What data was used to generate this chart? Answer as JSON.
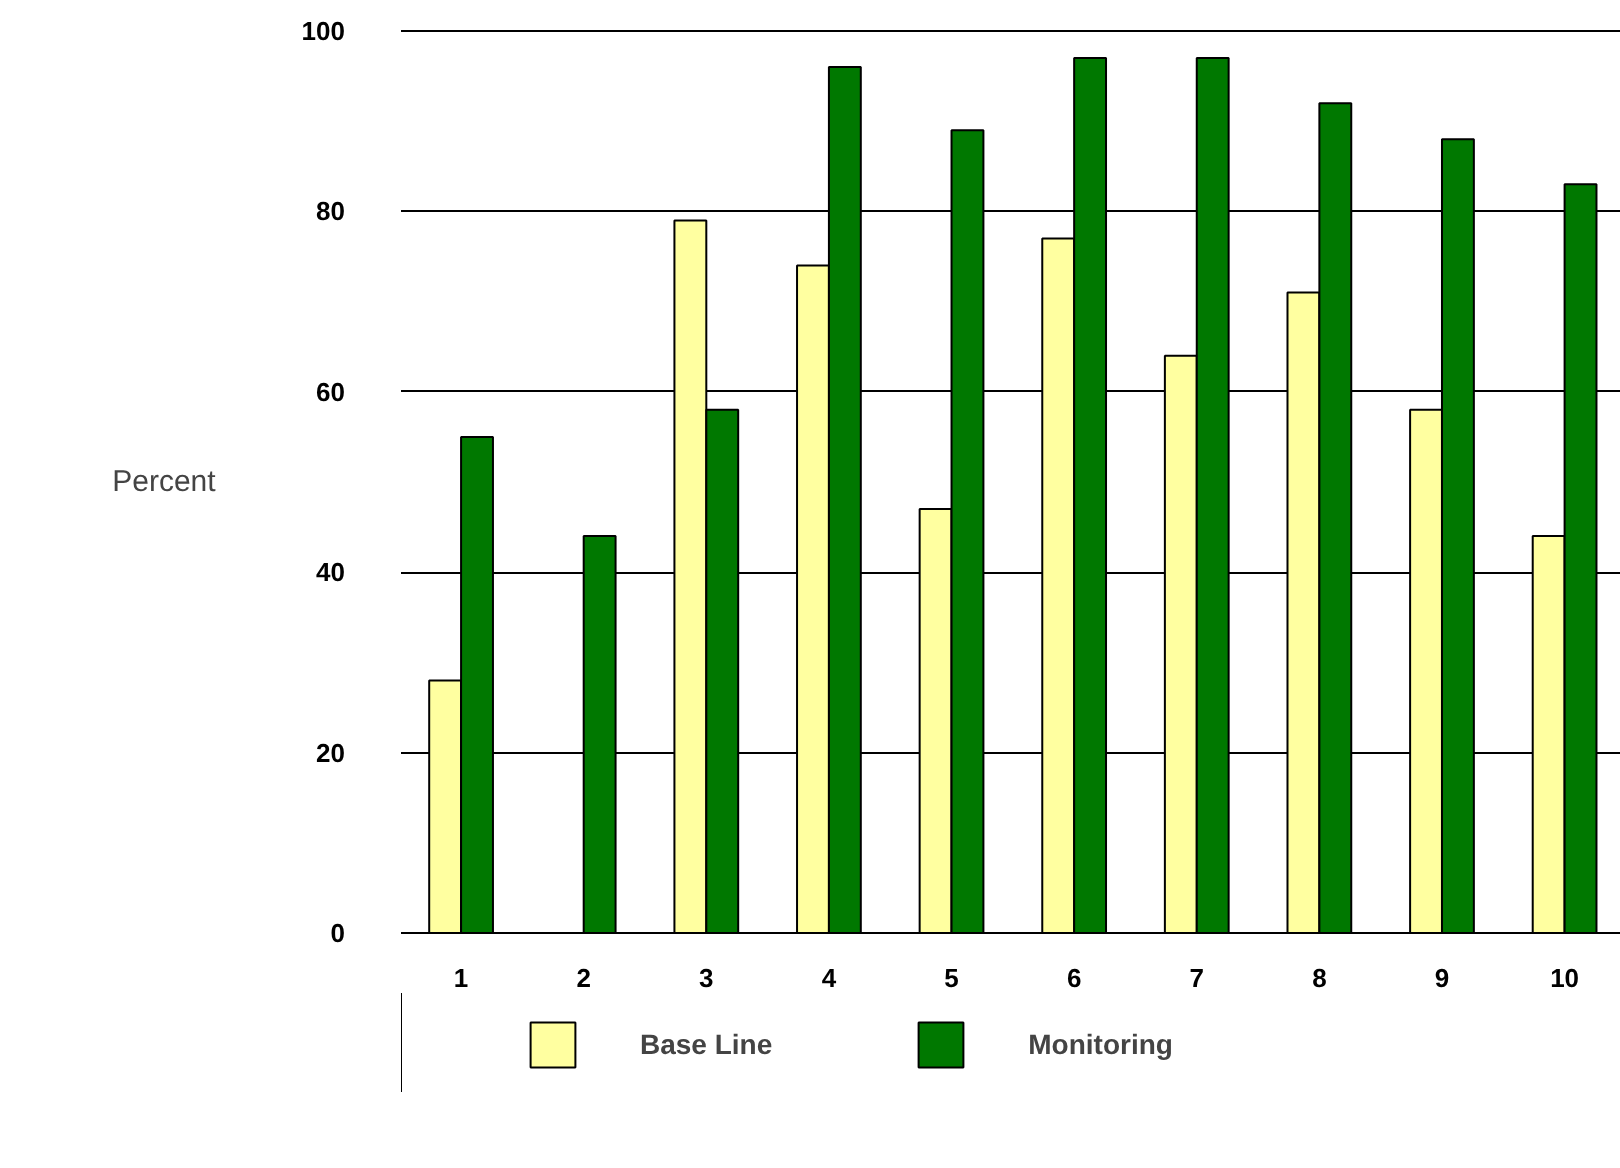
{
  "chart_data": {
    "type": "bar",
    "ylabel": "Percent",
    "categories": [
      "1",
      "2",
      "3",
      "4",
      "5",
      "6",
      "7",
      "8",
      "9",
      "10"
    ],
    "series": [
      {
        "name": "Base Line",
        "color": "#ffffa0",
        "values": [
          28,
          null,
          79,
          74,
          47,
          77,
          64,
          71,
          58,
          44
        ]
      },
      {
        "name": "Monitoring",
        "color": "#007800",
        "values": [
          55,
          44,
          58,
          96,
          89,
          97,
          97,
          92,
          88,
          83
        ]
      }
    ],
    "ylim": [
      0,
      100
    ],
    "yticks": [
      0,
      20,
      40,
      60,
      80,
      100
    ],
    "grid": "y",
    "legend": "bottom"
  }
}
